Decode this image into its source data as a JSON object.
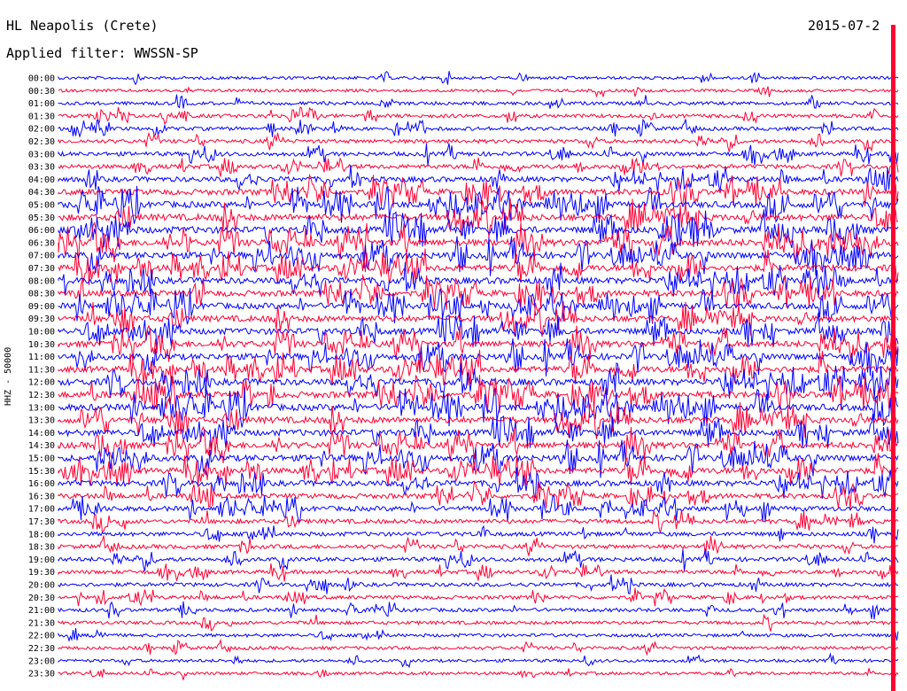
{
  "header": {
    "station": "HL Neapolis (Crete)",
    "filter": "Applied filter: WWSSN-SP",
    "date": "2015-07-2"
  },
  "axis": {
    "channel_label": "HHZ - 50000"
  },
  "colors": {
    "trace_a": "#0000ff",
    "trace_b": "#ff0033",
    "cursor": "#ff0033"
  },
  "chart_data": {
    "type": "line",
    "title": "HL Neapolis (Crete)",
    "ylabel": "HHZ - 50000",
    "row_interval_minutes": 30,
    "rows": [
      {
        "time": "00:00",
        "color": "blue",
        "activity": 0.15
      },
      {
        "time": "00:30",
        "color": "red",
        "activity": 0.15
      },
      {
        "time": "01:00",
        "color": "blue",
        "activity": 0.25
      },
      {
        "time": "01:30",
        "color": "red",
        "activity": 0.3
      },
      {
        "time": "02:00",
        "color": "blue",
        "activity": 0.3
      },
      {
        "time": "02:30",
        "color": "red",
        "activity": 0.35
      },
      {
        "time": "03:00",
        "color": "blue",
        "activity": 0.4
      },
      {
        "time": "03:30",
        "color": "red",
        "activity": 0.45
      },
      {
        "time": "04:00",
        "color": "blue",
        "activity": 0.6
      },
      {
        "time": "04:30",
        "color": "red",
        "activity": 0.75
      },
      {
        "time": "05:00",
        "color": "blue",
        "activity": 0.85
      },
      {
        "time": "05:30",
        "color": "red",
        "activity": 0.9
      },
      {
        "time": "06:00",
        "color": "blue",
        "activity": 0.95
      },
      {
        "time": "06:30",
        "color": "red",
        "activity": 0.95
      },
      {
        "time": "07:00",
        "color": "blue",
        "activity": 0.9
      },
      {
        "time": "07:30",
        "color": "red",
        "activity": 0.85
      },
      {
        "time": "08:00",
        "color": "blue",
        "activity": 0.85
      },
      {
        "time": "08:30",
        "color": "red",
        "activity": 0.8
      },
      {
        "time": "09:00",
        "color": "blue",
        "activity": 0.8
      },
      {
        "time": "09:30",
        "color": "red",
        "activity": 0.8
      },
      {
        "time": "10:00",
        "color": "blue",
        "activity": 0.85
      },
      {
        "time": "10:30",
        "color": "red",
        "activity": 0.85
      },
      {
        "time": "11:00",
        "color": "blue",
        "activity": 0.85
      },
      {
        "time": "11:30",
        "color": "red",
        "activity": 0.85
      },
      {
        "time": "12:00",
        "color": "blue",
        "activity": 0.9
      },
      {
        "time": "12:30",
        "color": "red",
        "activity": 0.9
      },
      {
        "time": "13:00",
        "color": "blue",
        "activity": 0.9
      },
      {
        "time": "13:30",
        "color": "red",
        "activity": 0.85
      },
      {
        "time": "14:00",
        "color": "blue",
        "activity": 0.85
      },
      {
        "time": "14:30",
        "color": "red",
        "activity": 0.85
      },
      {
        "time": "15:00",
        "color": "blue",
        "activity": 0.85
      },
      {
        "time": "15:30",
        "color": "red",
        "activity": 0.8
      },
      {
        "time": "16:00",
        "color": "blue",
        "activity": 0.7
      },
      {
        "time": "16:30",
        "color": "red",
        "activity": 0.6
      },
      {
        "time": "17:00",
        "color": "blue",
        "activity": 0.55
      },
      {
        "time": "17:30",
        "color": "red",
        "activity": 0.45
      },
      {
        "time": "18:00",
        "color": "blue",
        "activity": 0.4
      },
      {
        "time": "18:30",
        "color": "red",
        "activity": 0.4
      },
      {
        "time": "19:00",
        "color": "blue",
        "activity": 0.4
      },
      {
        "time": "19:30",
        "color": "red",
        "activity": 0.35
      },
      {
        "time": "20:00",
        "color": "blue",
        "activity": 0.35
      },
      {
        "time": "20:30",
        "color": "red",
        "activity": 0.3
      },
      {
        "time": "21:00",
        "color": "blue",
        "activity": 0.3
      },
      {
        "time": "21:30",
        "color": "red",
        "activity": 0.25
      },
      {
        "time": "22:00",
        "color": "blue",
        "activity": 0.2
      },
      {
        "time": "22:30",
        "color": "red",
        "activity": 0.2
      },
      {
        "time": "23:00",
        "color": "blue",
        "activity": 0.15
      },
      {
        "time": "23:30",
        "color": "red",
        "activity": 0.15
      }
    ]
  }
}
